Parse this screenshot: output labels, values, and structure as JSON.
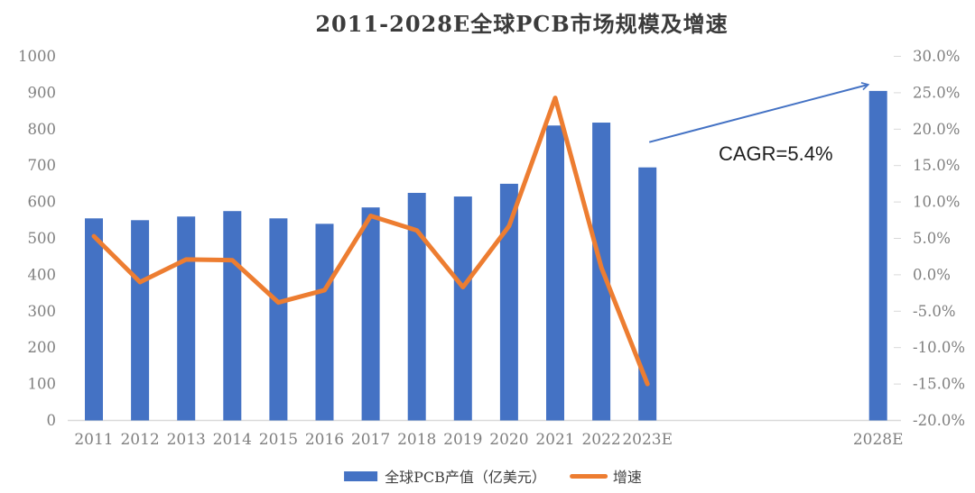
{
  "page": {
    "background": "#ffffff"
  },
  "chart_data": {
    "type": "combo",
    "title": "2011-2028E全球PCB市场规模及增速",
    "categories": [
      "2011",
      "2012",
      "2013",
      "2014",
      "2015",
      "2016",
      "2017",
      "2018",
      "2019",
      "2020",
      "2021",
      "2022",
      "2023E",
      "2028E"
    ],
    "x_slots": [
      0,
      1,
      2,
      3,
      4,
      5,
      6,
      7,
      8,
      9,
      10,
      11,
      12,
      17
    ],
    "total_slots": 18,
    "series": [
      {
        "name": "全球PCB产值（亿美元）",
        "type": "bar",
        "axis": "left",
        "color": "#4472C4",
        "values": [
          555,
          550,
          560,
          575,
          555,
          540,
          585,
          625,
          615,
          650,
          810,
          818,
          695,
          905
        ]
      },
      {
        "name": "增速",
        "type": "line",
        "axis": "right",
        "color": "#ED7D31",
        "values": [
          5.3,
          -1.0,
          2.1,
          2.0,
          -3.8,
          -2.1,
          8.1,
          6.1,
          -1.7,
          6.7,
          24.3,
          1.0,
          -15.0,
          null
        ]
      }
    ],
    "y_left": {
      "min": 0,
      "max": 1000,
      "step": 100,
      "tick_labels": [
        "0",
        "100",
        "200",
        "300",
        "400",
        "500",
        "600",
        "700",
        "800",
        "900",
        "1000"
      ]
    },
    "y_right": {
      "min": -20,
      "max": 30,
      "step": 5,
      "tick_labels": [
        "-20.0%",
        "-15.0%",
        "-10.0%",
        "-5.0%",
        "0.0%",
        "5.0%",
        "10.0%",
        "15.0%",
        "20.0%",
        "25.0%",
        "30.0%"
      ]
    },
    "annotation": {
      "text": "CAGR=5.4%",
      "arrow_color": "#4472C4"
    },
    "legend_position": "bottom",
    "grid": false,
    "colors": {
      "bar": "#4472C4",
      "line": "#ED7D31",
      "axis_line": "#D9D9D9",
      "tick_text": "#7F7F7F",
      "title_text": "#3B3B3B",
      "annotation_text": "#1F1F1F",
      "legend_text": "#404040"
    }
  }
}
